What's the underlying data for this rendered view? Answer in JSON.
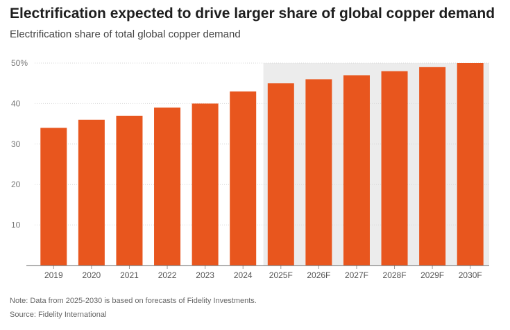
{
  "chart_data": {
    "type": "bar",
    "title": "Electrification expected to drive larger share of global copper demand",
    "subtitle": "Electrification share of total global copper demand",
    "categories": [
      "2019",
      "2020",
      "2021",
      "2022",
      "2023",
      "2024",
      "2025F",
      "2026F",
      "2027F",
      "2028F",
      "2029F",
      "2030F"
    ],
    "values": [
      34,
      36,
      37,
      39,
      40,
      43,
      45,
      46,
      47,
      48,
      49,
      50
    ],
    "ylim": [
      0,
      50
    ],
    "yticks": [
      "10",
      "20",
      "30",
      "40",
      "50%"
    ],
    "ytick_values": [
      10,
      20,
      30,
      40,
      50
    ],
    "grid": true,
    "bar_color": "#e8561e",
    "forecast_shade_color": "#ececec",
    "forecast_start_category": "2025F",
    "legend": "none"
  },
  "note": "Note: Data from 2025-2030 is based on forecasts of Fidelity Investments.",
  "source": "Source: Fidelity International"
}
